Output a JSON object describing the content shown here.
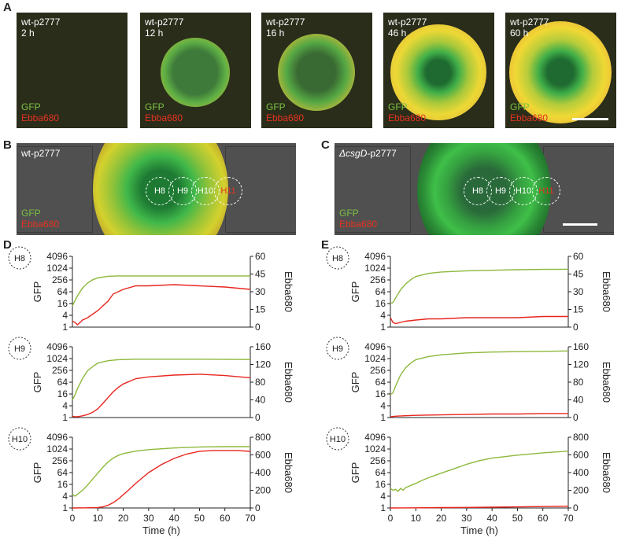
{
  "panels": {
    "A": {
      "label": "A",
      "images": [
        {
          "strain": "wt-p2777",
          "time": "2 h"
        },
        {
          "strain": "wt-p2777",
          "time": "12 h"
        },
        {
          "strain": "wt-p2777",
          "time": "16 h"
        },
        {
          "strain": "wt-p2777",
          "time": "46 h"
        },
        {
          "strain": "wt-p2777",
          "time": "60 h"
        }
      ],
      "channel_gfp": "GFP",
      "channel_ebba": "Ebba680"
    },
    "B": {
      "label": "B",
      "strain": "wt-p2777",
      "channel_gfp": "GFP",
      "channel_ebba": "Ebba680",
      "regions": [
        "H8",
        "H9",
        "H10",
        "H11"
      ]
    },
    "C": {
      "label": "C",
      "strain_prefix": "ΔcsgD",
      "strain_suffix": "-p2777",
      "channel_gfp": "GFP",
      "channel_ebba": "Ebba680",
      "regions": [
        "H8",
        "H9",
        "H10",
        "H11"
      ]
    },
    "D": {
      "label": "D"
    },
    "E": {
      "label": "E"
    }
  },
  "colors": {
    "gfp": "#8db83a",
    "ebba": "#e8261f",
    "axis": "#222222"
  },
  "chart_data": [
    {
      "panel": "D",
      "region": "H8",
      "type": "line",
      "xlabel": "Time (h)",
      "ylabel": "GFP",
      "y2label": "Ebba680",
      "xlim": [
        0,
        70
      ],
      "ylim": [
        1,
        4096
      ],
      "yscale": "log2",
      "yticks": [
        1,
        4,
        16,
        64,
        256,
        1024,
        4096
      ],
      "y2lim": [
        0,
        60
      ],
      "y2ticks": [
        0,
        15,
        30,
        45,
        60
      ],
      "series": [
        {
          "name": "GFP",
          "axis": "left",
          "x": [
            0,
            1,
            2,
            4,
            6,
            8,
            10,
            14,
            18,
            25,
            35,
            50,
            70
          ],
          "values": [
            12,
            22,
            40,
            100,
            180,
            260,
            330,
            390,
            410,
            410,
            410,
            410,
            410
          ]
        },
        {
          "name": "Ebba680",
          "axis": "right",
          "x": [
            0,
            1,
            2,
            3,
            4,
            6,
            8,
            10,
            12,
            14,
            16,
            20,
            25,
            30,
            40,
            50,
            60,
            70
          ],
          "values": [
            5,
            4,
            2,
            4,
            6,
            8,
            11,
            14,
            18,
            22,
            28,
            32,
            35,
            35,
            36,
            35,
            34,
            32
          ]
        }
      ]
    },
    {
      "panel": "D",
      "region": "H9",
      "type": "line",
      "xlabel": "Time (h)",
      "ylabel": "GFP",
      "y2label": "Ebba680",
      "xlim": [
        0,
        70
      ],
      "ylim": [
        1,
        4096
      ],
      "yscale": "log2",
      "yticks": [
        1,
        4,
        16,
        64,
        256,
        1024,
        4096
      ],
      "y2lim": [
        0,
        160
      ],
      "y2ticks": [
        0,
        40,
        80,
        120,
        160
      ],
      "series": [
        {
          "name": "GFP",
          "axis": "left",
          "x": [
            0,
            1,
            2,
            4,
            6,
            8,
            10,
            14,
            18,
            25,
            35,
            50,
            70
          ],
          "values": [
            8,
            14,
            30,
            100,
            250,
            400,
            600,
            800,
            900,
            950,
            950,
            950,
            920
          ]
        },
        {
          "name": "Ebba680",
          "axis": "right",
          "x": [
            0,
            1,
            2,
            4,
            6,
            8,
            10,
            12,
            14,
            16,
            18,
            20,
            25,
            30,
            40,
            50,
            60,
            70
          ],
          "values": [
            3,
            2,
            2,
            4,
            7,
            12,
            20,
            32,
            45,
            58,
            68,
            76,
            88,
            92,
            96,
            98,
            95,
            90
          ]
        }
      ]
    },
    {
      "panel": "D",
      "region": "H10",
      "type": "line",
      "xlabel": "Time (h)",
      "ylabel": "GFP",
      "y2label": "Ebba680",
      "xlim": [
        0,
        70
      ],
      "ylim": [
        1,
        4096
      ],
      "yscale": "log2",
      "yticks": [
        1,
        4,
        16,
        64,
        256,
        1024,
        4096
      ],
      "y2lim": [
        0,
        800
      ],
      "y2ticks": [
        0,
        200,
        400,
        600,
        800
      ],
      "series": [
        {
          "name": "GFP",
          "axis": "left",
          "x": [
            0,
            1,
            2,
            4,
            6,
            8,
            10,
            12,
            14,
            16,
            18,
            20,
            25,
            30,
            40,
            50,
            60,
            70
          ],
          "values": [
            5,
            4,
            5,
            8,
            15,
            30,
            60,
            120,
            220,
            350,
            480,
            600,
            800,
            950,
            1150,
            1300,
            1350,
            1350
          ]
        },
        {
          "name": "Ebba680",
          "axis": "right",
          "x": [
            0,
            5,
            10,
            12,
            14,
            16,
            18,
            20,
            22,
            25,
            30,
            35,
            40,
            45,
            50,
            55,
            60,
            65,
            70
          ],
          "values": [
            0,
            2,
            5,
            12,
            30,
            60,
            100,
            150,
            200,
            280,
            400,
            490,
            560,
            610,
            640,
            650,
            650,
            650,
            640
          ]
        }
      ]
    },
    {
      "panel": "E",
      "region": "H8",
      "type": "line",
      "xlabel": "Time (h)",
      "ylabel": "GFP",
      "y2label": "Ebba680",
      "xlim": [
        0,
        70
      ],
      "ylim": [
        1,
        4096
      ],
      "yscale": "log2",
      "yticks": [
        1,
        4,
        16,
        64,
        256,
        1024,
        4096
      ],
      "y2lim": [
        0,
        60
      ],
      "y2ticks": [
        0,
        15,
        30,
        45,
        60
      ],
      "series": [
        {
          "name": "GFP",
          "axis": "left",
          "x": [
            0,
            1,
            2,
            4,
            6,
            8,
            10,
            15,
            20,
            30,
            40,
            50,
            60,
            70
          ],
          "values": [
            16,
            18,
            30,
            80,
            160,
            260,
            380,
            550,
            650,
            750,
            800,
            850,
            880,
            900
          ]
        },
        {
          "name": "Ebba680",
          "axis": "right",
          "x": [
            0,
            1,
            2,
            4,
            6,
            10,
            15,
            20,
            30,
            40,
            50,
            60,
            70
          ],
          "values": [
            8,
            4,
            3,
            4,
            5,
            6,
            7,
            7,
            8,
            8,
            8,
            9,
            9
          ]
        }
      ]
    },
    {
      "panel": "E",
      "region": "H9",
      "type": "line",
      "xlabel": "Time (h)",
      "ylabel": "GFP",
      "y2label": "Ebba680",
      "xlim": [
        0,
        70
      ],
      "ylim": [
        1,
        4096
      ],
      "yscale": "log2",
      "yticks": [
        1,
        4,
        16,
        64,
        256,
        1024,
        4096
      ],
      "y2lim": [
        0,
        160
      ],
      "y2ticks": [
        0,
        40,
        80,
        120,
        160
      ],
      "series": [
        {
          "name": "GFP",
          "axis": "left",
          "x": [
            0,
            1,
            2,
            4,
            6,
            8,
            10,
            15,
            20,
            30,
            40,
            50,
            60,
            70
          ],
          "values": [
            15,
            18,
            40,
            150,
            350,
            600,
            900,
            1300,
            1600,
            2000,
            2200,
            2300,
            2400,
            2500
          ]
        },
        {
          "name": "Ebba680",
          "axis": "right",
          "x": [
            0,
            2,
            5,
            10,
            20,
            30,
            40,
            50,
            60,
            70
          ],
          "values": [
            2,
            3,
            4,
            5,
            6,
            7,
            8,
            8,
            9,
            9
          ]
        }
      ]
    },
    {
      "panel": "E",
      "region": "H10",
      "type": "line",
      "xlabel": "Time (h)",
      "ylabel": "GFP",
      "y2label": "Ebba680",
      "xlim": [
        0,
        70
      ],
      "ylim": [
        1,
        4096
      ],
      "yscale": "log2",
      "yticks": [
        1,
        4,
        16,
        64,
        256,
        1024,
        4096
      ],
      "y2lim": [
        0,
        800
      ],
      "y2ticks": [
        0,
        200,
        400,
        600,
        800
      ],
      "series": [
        {
          "name": "GFP",
          "axis": "left",
          "x": [
            0,
            1,
            2,
            3,
            4,
            5,
            6,
            8,
            10,
            12,
            15,
            20,
            25,
            30,
            35,
            40,
            50,
            60,
            70
          ],
          "values": [
            10,
            8,
            9,
            7,
            10,
            8,
            11,
            14,
            18,
            24,
            35,
            60,
            100,
            170,
            260,
            350,
            500,
            650,
            800
          ]
        },
        {
          "name": "Ebba680",
          "axis": "right",
          "x": [
            0,
            10,
            20,
            30,
            40,
            50,
            60,
            70
          ],
          "values": [
            0,
            2,
            4,
            6,
            9,
            12,
            16,
            20
          ]
        }
      ]
    }
  ]
}
